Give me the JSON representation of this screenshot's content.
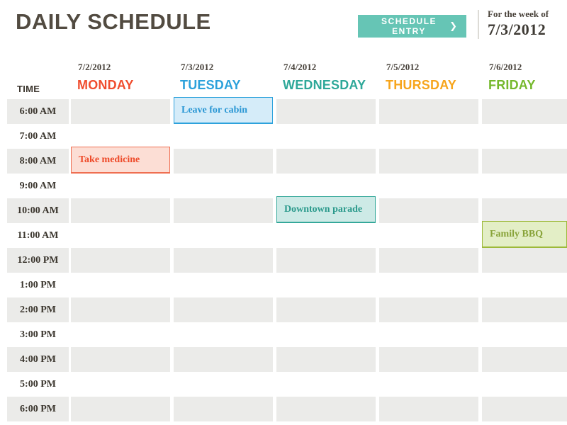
{
  "header": {
    "title": "DAILY SCHEDULE",
    "schedule_entry_button": {
      "label": "SCHEDULE ENTRY",
      "chevron": "❯",
      "bg_color": "#66c5b5",
      "text_color": "#ffffff"
    },
    "week_of": {
      "label": "For the week of",
      "date": "7/3/2012"
    }
  },
  "schedule": {
    "time_header": "TIME",
    "stripe_color": "#ebebe9",
    "days": [
      {
        "date": "7/2/2012",
        "name": "MONDAY",
        "color": "#f04d2e"
      },
      {
        "date": "7/3/2012",
        "name": "TUESDAY",
        "color": "#2ba1db"
      },
      {
        "date": "7/4/2012",
        "name": "WEDNESDAY",
        "color": "#2ea899"
      },
      {
        "date": "7/5/2012",
        "name": "THURSDAY",
        "color": "#f7a51c"
      },
      {
        "date": "7/6/2012",
        "name": "FRIDAY",
        "color": "#75b82c"
      }
    ],
    "times": [
      "6:00 AM",
      "7:00 AM",
      "8:00 AM",
      "9:00 AM",
      "10:00 AM",
      "11:00 AM",
      "12:00 PM",
      "1:00 PM",
      "2:00 PM",
      "3:00 PM",
      "4:00 PM",
      "5:00 PM",
      "6:00 PM"
    ],
    "events": [
      {
        "title": "Leave for cabin",
        "day": "TUESDAY",
        "day_index": 1,
        "time": "6:00 AM",
        "row_index": 0,
        "colors": {
          "bg": "#d5ecf9",
          "border": "#2da2dc",
          "text": "#2a97d4"
        }
      },
      {
        "title": "Take medicine",
        "day": "MONDAY",
        "day_index": 0,
        "time": "8:00 AM",
        "row_index": 2,
        "colors": {
          "bg": "#fcded5",
          "border": "#ef6f52",
          "text": "#ee4a29"
        }
      },
      {
        "title": "Downtown parade",
        "day": "WEDNESDAY",
        "day_index": 2,
        "time": "10:00 AM",
        "row_index": 4,
        "colors": {
          "bg": "#cdeae6",
          "border": "#35a89a",
          "text": "#2b9a8c"
        }
      },
      {
        "title": "Family BBQ",
        "day": "FRIDAY",
        "day_index": 4,
        "time": "11:00 AM",
        "row_index": 5,
        "colors": {
          "bg": "#e3eec6",
          "border": "#9db93a",
          "text": "#88a339"
        }
      }
    ]
  }
}
